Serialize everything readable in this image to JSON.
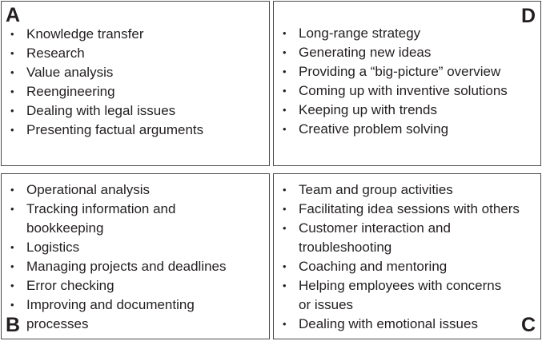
{
  "quadrants": {
    "a": {
      "letter": "A",
      "items": [
        {
          "line1": "Knowledge transfer",
          "line2": ""
        },
        {
          "line1": "Research",
          "line2": ""
        },
        {
          "line1": "Value analysis",
          "line2": ""
        },
        {
          "line1": "Reengineering",
          "line2": ""
        },
        {
          "line1": "Dealing with legal issues",
          "line2": ""
        },
        {
          "line1": "Presenting factual arguments",
          "line2": ""
        }
      ]
    },
    "d": {
      "letter": "D",
      "items": [
        {
          "line1": "Long-range strategy",
          "line2": ""
        },
        {
          "line1": "Generating new ideas",
          "line2": ""
        },
        {
          "line1": "Providing a “big-picture” overview",
          "line2": ""
        },
        {
          "line1": "Coming up with inventive solutions",
          "line2": ""
        },
        {
          "line1": "Keeping up with trends",
          "line2": ""
        },
        {
          "line1": "Creative problem solving",
          "line2": ""
        }
      ]
    },
    "b": {
      "letter": "B",
      "items": [
        {
          "line1": "Operational analysis",
          "line2": ""
        },
        {
          "line1": "Tracking information and",
          "line2": "bookkeeping"
        },
        {
          "line1": "Logistics",
          "line2": ""
        },
        {
          "line1": "Managing projects and deadlines",
          "line2": ""
        },
        {
          "line1": "Error checking",
          "line2": ""
        },
        {
          "line1": "Improving and documenting",
          "line2": "processes"
        }
      ]
    },
    "c": {
      "letter": "C",
      "items": [
        {
          "line1": "Team and group activities",
          "line2": ""
        },
        {
          "line1": "Facilitating idea sessions with others",
          "line2": ""
        },
        {
          "line1": "Customer interaction and",
          "line2": "troubleshooting"
        },
        {
          "line1": "Coaching and mentoring",
          "line2": ""
        },
        {
          "line1": "Helping employees with concerns",
          "line2": "or issues"
        },
        {
          "line1": "Dealing with emotional issues",
          "line2": ""
        }
      ]
    }
  },
  "bullet_glyph": "•",
  "colors": {
    "text": "#231f20",
    "border": "#4a4a4a",
    "background": "#ffffff"
  }
}
